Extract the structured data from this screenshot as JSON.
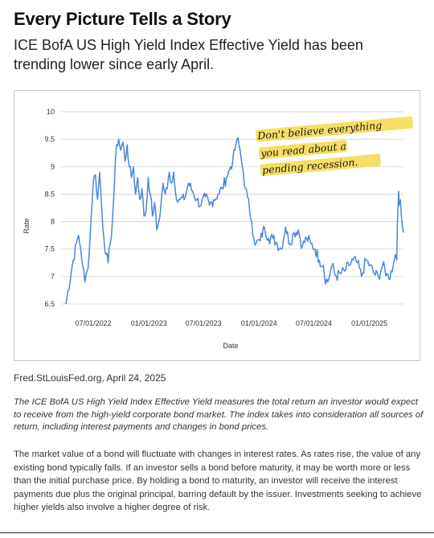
{
  "header": {
    "title": "Every Picture Tells a Story",
    "subtitle": "ICE BofA US High Yield Index Effective Yield has been trending lower since early April."
  },
  "source": "Fred.StLouisFed.org, April 24, 2025",
  "description": "The ICE BofA US High Yield Index Effective Yield measures the total return an investor would expect to receive from the high-yield corporate bond market. The index takes into consideration all sources of return, including interest payments and changes in bond prices.",
  "disclaimer": "The market value of a bond will fluctuate with changes in interest rates. As rates rise, the value of any existing bond typically falls. If an investor sells a bond before maturity, it may be worth more or less than the initial purchase price. By holding a bond to maturity, an investor will receive the interest payments due plus the original principal, barring default by the issuer. Investments seeking to achieve higher yields also involve a higher degree of risk.",
  "annotation": {
    "lines": [
      "Don't believe everything",
      "you read about a",
      "pending recession."
    ],
    "highlight_color": "#f6d84a"
  },
  "colors": {
    "line": "#4a86d8",
    "grid": "#cfcfcf"
  },
  "chart_data": {
    "type": "line",
    "title": "",
    "xlabel": "Date",
    "ylabel": "Rate",
    "ylim": [
      6.5,
      10
    ],
    "yticks": [
      "6.5",
      "7",
      "7.5",
      "8",
      "8.5",
      "9",
      "9.5",
      "10"
    ],
    "xticks": [
      {
        "label": "07/01/2022",
        "date": "2022-07-01"
      },
      {
        "label": "01/01/2023",
        "date": "2023-01-01"
      },
      {
        "label": "07/01/2023",
        "date": "2023-07-01"
      },
      {
        "label": "01/01/2024",
        "date": "2024-01-01"
      },
      {
        "label": "07/01/2024",
        "date": "2024-07-01"
      },
      {
        "label": "01/01/2025",
        "date": "2025-01-01"
      }
    ],
    "xlim": [
      "2022-04-01",
      "2025-04-24"
    ],
    "grid": "horizontal",
    "series": [
      {
        "x": [
          "2022-04-01",
          "2022-04-22",
          "2022-05-06",
          "2022-05-13",
          "2022-05-20",
          "2022-05-27",
          "2022-06-03",
          "2022-06-10",
          "2022-06-17",
          "2022-06-24",
          "2022-07-01",
          "2022-07-08",
          "2022-07-15",
          "2022-07-22",
          "2022-07-29",
          "2022-08-05",
          "2022-08-12",
          "2022-08-19",
          "2022-08-26",
          "2022-09-02",
          "2022-09-09",
          "2022-09-16",
          "2022-09-23",
          "2022-09-30",
          "2022-10-07",
          "2022-10-14",
          "2022-10-21",
          "2022-10-28",
          "2022-11-04",
          "2022-11-11",
          "2022-11-18",
          "2022-11-25",
          "2022-12-02",
          "2022-12-09",
          "2022-12-16",
          "2022-12-23",
          "2022-12-30",
          "2023-01-06",
          "2023-01-13",
          "2023-01-20",
          "2023-01-27",
          "2023-02-03",
          "2023-02-10",
          "2023-02-17",
          "2023-02-24",
          "2023-03-03",
          "2023-03-10",
          "2023-03-17",
          "2023-03-24",
          "2023-03-31",
          "2023-04-14",
          "2023-04-28",
          "2023-05-12",
          "2023-05-26",
          "2023-06-09",
          "2023-06-23",
          "2023-07-07",
          "2023-07-21",
          "2023-08-04",
          "2023-08-18",
          "2023-09-01",
          "2023-09-15",
          "2023-09-29",
          "2023-10-06",
          "2023-10-13",
          "2023-10-20",
          "2023-10-27",
          "2023-11-03",
          "2023-11-10",
          "2023-11-17",
          "2023-11-24",
          "2023-12-01",
          "2023-12-08",
          "2023-12-15",
          "2023-12-22",
          "2024-01-05",
          "2024-01-19",
          "2024-02-02",
          "2024-02-16",
          "2024-03-01",
          "2024-03-15",
          "2024-03-29",
          "2024-04-12",
          "2024-04-26",
          "2024-05-10",
          "2024-05-24",
          "2024-06-07",
          "2024-06-21",
          "2024-07-05",
          "2024-07-19",
          "2024-08-02",
          "2024-08-05",
          "2024-08-16",
          "2024-08-30",
          "2024-09-13",
          "2024-09-27",
          "2024-10-11",
          "2024-10-25",
          "2024-11-08",
          "2024-11-22",
          "2024-12-06",
          "2024-12-20",
          "2025-01-03",
          "2025-01-17",
          "2025-01-31",
          "2025-02-14",
          "2025-02-28",
          "2025-03-07",
          "2025-03-14",
          "2025-03-21",
          "2025-03-28",
          "2025-04-02",
          "2025-04-04",
          "2025-04-08",
          "2025-04-10",
          "2025-04-14",
          "2025-04-17",
          "2025-04-21",
          "2025-04-24"
        ],
        "values": [
          6.5,
          7.2,
          7.6,
          7.75,
          7.5,
          7.2,
          6.9,
          7.1,
          7.4,
          8.1,
          8.75,
          8.85,
          8.4,
          8.9,
          8.2,
          7.7,
          7.4,
          7.25,
          7.6,
          8.0,
          8.7,
          9.4,
          9.5,
          9.3,
          9.45,
          9.1,
          9.4,
          9.0,
          8.8,
          9.0,
          8.5,
          8.8,
          8.4,
          8.6,
          8.1,
          8.2,
          8.8,
          8.5,
          8.1,
          8.35,
          7.85,
          8.0,
          8.3,
          8.7,
          8.5,
          8.6,
          8.9,
          8.7,
          8.9,
          8.5,
          8.4,
          8.4,
          8.7,
          8.55,
          8.4,
          8.3,
          8.45,
          8.3,
          8.4,
          8.5,
          8.6,
          8.8,
          9.0,
          9.1,
          9.3,
          9.5,
          9.4,
          9.15,
          8.9,
          8.6,
          8.45,
          8.2,
          8.0,
          7.7,
          7.6,
          7.65,
          7.9,
          7.7,
          7.7,
          7.6,
          7.5,
          7.9,
          7.6,
          7.8,
          7.85,
          7.55,
          7.7,
          7.6,
          7.5,
          7.3,
          7.2,
          7.0,
          6.9,
          7.2,
          7.0,
          7.05,
          7.1,
          7.2,
          7.3,
          7.25,
          7.0,
          7.3,
          7.2,
          7.05,
          7.0,
          7.2,
          7.05,
          6.95,
          7.1,
          7.2,
          7.4,
          7.3,
          8.0,
          8.55,
          8.3,
          8.4,
          8.1,
          7.9,
          7.8
        ]
      }
    ]
  }
}
